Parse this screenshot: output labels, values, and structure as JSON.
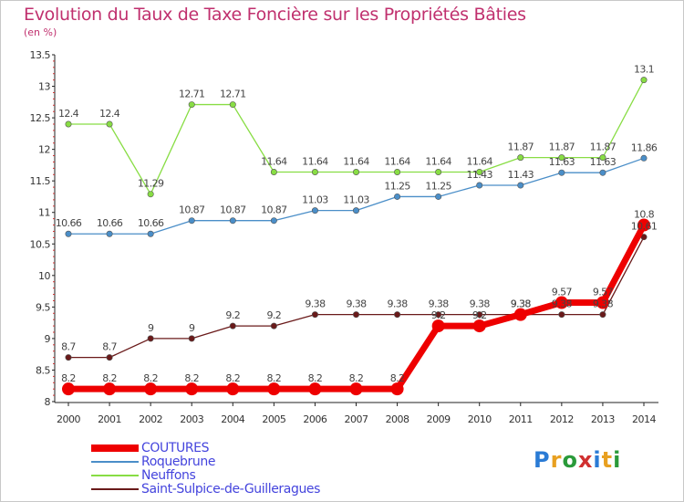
{
  "title": "Evolution du Taux de Taxe Foncière sur les Propriétés Bâties",
  "unit_label": "(en %)",
  "chart_data": {
    "type": "line",
    "title": "Evolution du Taux de Taxe Foncière sur les Propriétés Bâties",
    "ylabel": "(en %)",
    "xlabel": "",
    "x": [
      "2000",
      "2001",
      "2002",
      "2003",
      "2004",
      "2005",
      "2006",
      "2007",
      "2008",
      "2009",
      "2010",
      "2011",
      "2012",
      "2013",
      "2014"
    ],
    "ylim": [
      8,
      13.5
    ],
    "yticks": [
      "8",
      "8.5",
      "9",
      "9.5",
      "10",
      "10.5",
      "11",
      "11.5",
      "12",
      "12.5",
      "13",
      "13.5"
    ],
    "grid": false,
    "legend_position": "bottom-left",
    "series": [
      {
        "name": "COUTURES",
        "color": "#ee0000",
        "values": [
          8.2,
          8.2,
          8.2,
          8.2,
          8.2,
          8.2,
          8.2,
          8.2,
          8.2,
          9.2,
          9.2,
          9.38,
          9.57,
          9.57,
          10.8
        ],
        "labels": [
          "8.2",
          "8.2",
          "8.2",
          "8.2",
          "8.2",
          "8.2",
          "8.2",
          "8.2",
          "8.2",
          "9.2",
          "9.2",
          "9.38",
          "9.57",
          "9.57",
          "10.8"
        ]
      },
      {
        "name": "Roquebrune",
        "color": "#4a8ec8",
        "values": [
          10.66,
          10.66,
          10.66,
          10.87,
          10.87,
          10.87,
          11.03,
          11.03,
          11.25,
          11.25,
          11.43,
          11.43,
          11.63,
          11.63,
          11.86
        ],
        "labels": [
          "10.66",
          "10.66",
          "10.66",
          "10.87",
          "10.87",
          "10.87",
          "11.03",
          "11.03",
          "11.25",
          "11.25",
          "11.43",
          "11.43",
          "11.63",
          "11.63",
          "11.86"
        ]
      },
      {
        "name": "Neuffons",
        "color": "#88dd44",
        "values": [
          12.4,
          12.4,
          11.29,
          12.71,
          12.71,
          11.64,
          11.64,
          11.64,
          11.64,
          11.64,
          11.64,
          11.87,
          11.87,
          11.87,
          13.1
        ],
        "labels": [
          "12.4",
          "12.4",
          "11.29",
          "12.71",
          "12.71",
          "11.64",
          "11.64",
          "11.64",
          "11.64",
          "11.64",
          "11.64",
          "11.87",
          "11.87",
          "11.87",
          "13.1"
        ]
      },
      {
        "name": "Saint-Sulpice-de-Guilleragues",
        "color": "#6a1a1a",
        "values": [
          8.7,
          8.7,
          9,
          9,
          9.2,
          9.2,
          9.38,
          9.38,
          9.38,
          9.38,
          9.38,
          9.38,
          9.38,
          9.38,
          10.61
        ],
        "labels": [
          "8.7",
          "8.7",
          "9",
          "9",
          "9.2",
          "9.2",
          "9.38",
          "9.38",
          "9.38",
          "9.38",
          "9.38",
          "9.38",
          "9.38",
          "9.38",
          "10.61"
        ]
      }
    ]
  },
  "logo": {
    "text": "Proxiti",
    "letters": [
      "P",
      "r",
      "o",
      "x",
      "i",
      "t",
      "i"
    ],
    "colors": [
      "#2a7bd5",
      "#e8a020",
      "#2a9a3a",
      "#d03030",
      "#2a7bd5",
      "#e8a020",
      "#2a9a3a"
    ]
  }
}
